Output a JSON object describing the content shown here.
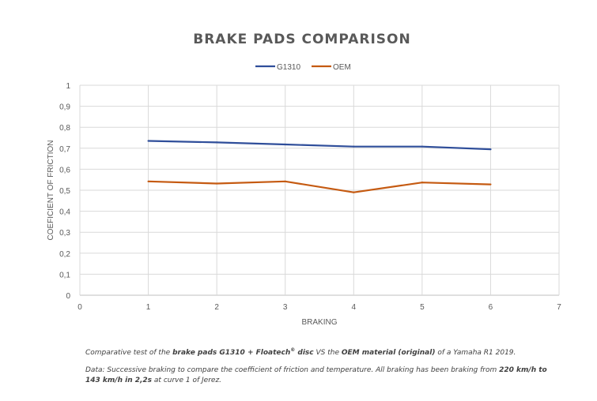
{
  "chart_data": {
    "type": "line",
    "title": "BRAKE PADS COMPARISON",
    "xlabel": "BRAKING",
    "ylabel": "COEFICIENT OF FRICTION",
    "xlim": [
      0,
      7
    ],
    "ylim": [
      0,
      1
    ],
    "x_ticks": [
      "0",
      "1",
      "2",
      "3",
      "4",
      "5",
      "6",
      "7"
    ],
    "y_ticks": [
      "0",
      "0,1",
      "0,2",
      "0,3",
      "0,4",
      "0,5",
      "0,6",
      "0,7",
      "0,8",
      "0,9",
      "1"
    ],
    "grid": true,
    "legend_position": "top-center",
    "series": [
      {
        "name": "G1310",
        "color": "#2f4e9a",
        "x": [
          1,
          2,
          3,
          4,
          5,
          6
        ],
        "values": [
          0.735,
          0.728,
          0.718,
          0.708,
          0.708,
          0.695
        ]
      },
      {
        "name": "OEM",
        "color": "#c55a11",
        "x": [
          1,
          2,
          3,
          4,
          5,
          6
        ],
        "values": [
          0.542,
          0.532,
          0.542,
          0.49,
          0.537,
          0.528
        ]
      }
    ]
  },
  "caption1": {
    "t1": "Comparative test of the ",
    "t2": "brake pads G1310 + Floatech",
    "t3": "®",
    "t4": " disc",
    "t5": " VS the ",
    "t6": "OEM material (original)",
    "t7": " of a Yamaha R1 2019."
  },
  "caption2": {
    "t1": "Data: Successive braking to compare the coefficient of friction and temperature. All braking has been braking from ",
    "t2": "220 km/h to 143 km/h in 2,2s",
    "t3": " at curve 1 of Jerez."
  }
}
